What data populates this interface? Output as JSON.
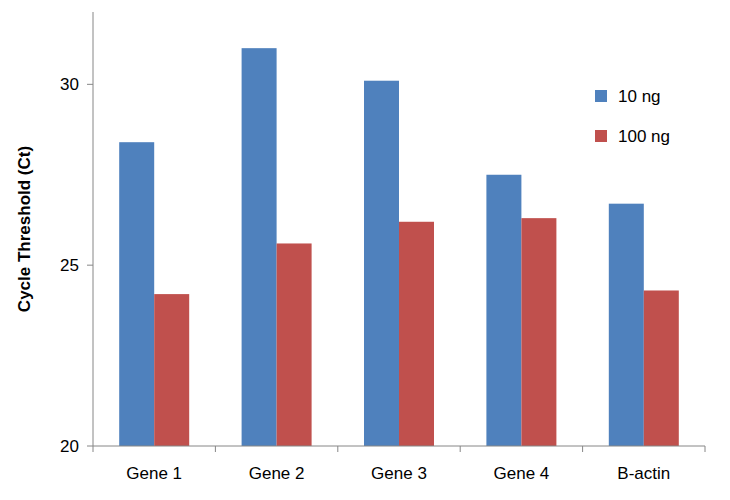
{
  "chart_data": {
    "type": "bar",
    "y_label": "Cycle Threshold (Ct)",
    "categories": [
      "Gene 1",
      "Gene 2",
      "Gene 3",
      "Gene 4",
      "B-actin"
    ],
    "series": [
      {
        "name": "10 ng",
        "color": "#4f81bd",
        "values": [
          28.4,
          31.0,
          30.1,
          27.5,
          26.7
        ]
      },
      {
        "name": "100 ng",
        "color": "#c0504d",
        "values": [
          24.2,
          25.6,
          26.2,
          26.3,
          24.3
        ]
      }
    ],
    "ylim": [
      20,
      32
    ],
    "yticks": [
      20,
      25,
      30
    ],
    "grid": false,
    "legend": "right"
  }
}
